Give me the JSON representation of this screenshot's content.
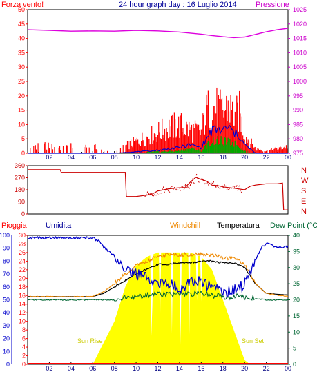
{
  "chart_data": [
    {
      "id": "wind",
      "type": "bar",
      "title": "24 hour graph day : 16 Luglio 2014",
      "left_label": "Forza vento!",
      "right_label": "Pressione",
      "left_ticks": [
        "0",
        "5",
        "10",
        "15",
        "20",
        "25",
        "30",
        "35",
        "40",
        "45",
        "50"
      ],
      "right_ticks": [
        "975",
        "980",
        "985",
        "990",
        "995",
        "1000",
        "1005",
        "1010",
        "1015",
        "1020",
        "1025"
      ],
      "x_ticks": [
        "02",
        "04",
        "06",
        "08",
        "10",
        "12",
        "14",
        "16",
        "18",
        "20",
        "22",
        "00"
      ],
      "ylim": [
        0,
        50
      ],
      "ylim_right": [
        975,
        1025
      ],
      "xlim": [
        0,
        24
      ],
      "colors": {
        "gust": "#ff0000",
        "speed": "#0000cc",
        "lull": "#00aa00",
        "pressure": "#dd00dd"
      },
      "pressure": {
        "name": "Pressione",
        "x": [
          0,
          2,
          4,
          6,
          8,
          10,
          12,
          14,
          16,
          17,
          18,
          19,
          20,
          21,
          22,
          23,
          24
        ],
        "y": [
          1018,
          1017.8,
          1017.5,
          1017.6,
          1017.5,
          1017.8,
          1017.6,
          1017.2,
          1016.5,
          1016,
          1015.6,
          1015.3,
          1015.5,
          1016.4,
          1017.3,
          1018,
          1018.5
        ]
      },
      "gust_envelope": {
        "x": [
          0,
          1,
          2,
          3,
          4,
          5,
          6,
          7,
          8,
          9,
          10,
          11,
          12,
          13,
          14,
          15,
          16,
          16.5,
          17,
          17.5,
          18,
          18.5,
          19,
          19.5,
          20,
          21,
          22,
          23,
          24
        ],
        "y": [
          2,
          4,
          3,
          2,
          3,
          2,
          3,
          1,
          0,
          3,
          5,
          7,
          9,
          11,
          12,
          10,
          9,
          18,
          20,
          19,
          17,
          21,
          16,
          18,
          8,
          2,
          1,
          2,
          3
        ]
      },
      "speed_envelope": {
        "x": [
          0,
          8,
          12,
          14,
          15,
          16,
          16.5,
          17,
          18,
          18.5,
          19,
          19.5,
          20,
          21,
          24
        ],
        "y": [
          0,
          0,
          1,
          2,
          3,
          2,
          5,
          8,
          8,
          9,
          7,
          6,
          3,
          0,
          0
        ]
      },
      "lull_envelope": {
        "x": [
          0,
          8,
          14,
          15,
          16,
          16.5,
          17,
          18,
          19,
          19.5,
          20,
          21,
          24
        ],
        "y": [
          0,
          0,
          1,
          2,
          1,
          3,
          5,
          5,
          4,
          3,
          1,
          0,
          0
        ]
      }
    },
    {
      "id": "direction",
      "type": "line",
      "left_ticks": [
        "0",
        "90",
        "180",
        "270",
        "360"
      ],
      "compass_labels": [
        "N",
        "W",
        "S",
        "E",
        "N"
      ],
      "ylim": [
        0,
        360
      ],
      "xlim": [
        0,
        24
      ],
      "color": "#cc0000",
      "series": [
        {
          "x": [
            0,
            3,
            3.1,
            9,
            9.1,
            10,
            11,
            11.5,
            12,
            13,
            14,
            14.5,
            15,
            15.5,
            16,
            16.5,
            17,
            17.5,
            18,
            19,
            20,
            20.5,
            21,
            22,
            23,
            23.5,
            23.6,
            24
          ],
          "y": [
            330,
            330,
            310,
            310,
            130,
            130,
            140,
            145,
            160,
            185,
            195,
            200,
            230,
            270,
            250,
            235,
            215,
            205,
            195,
            190,
            180,
            205,
            215,
            225,
            225,
            230,
            30,
            30
          ]
        }
      ]
    },
    {
      "id": "combo",
      "type": "line",
      "legend": {
        "pioggia": "Pioggia",
        "umidita": "Umidita",
        "windchill": "Windchill",
        "temperatura": "Temperatura",
        "dewpoint": "Dew Point (°C"
      },
      "humidity_ticks": [
        "0",
        "10",
        "20",
        "30",
        "40",
        "50",
        "60",
        "70",
        "80",
        "90",
        "100"
      ],
      "rain_ticks": [
        "0",
        "2",
        "4",
        "6",
        "8",
        "10",
        "12",
        "14",
        "16",
        "18",
        "20",
        "22",
        "24",
        "26",
        "28",
        "30"
      ],
      "temp_ticks": [
        "0",
        "5",
        "10",
        "15",
        "20",
        "25",
        "30",
        "35",
        "40"
      ],
      "x_ticks": [
        "02",
        "04",
        "06",
        "08",
        "10",
        "12",
        "14",
        "16",
        "18",
        "20",
        "22",
        "00"
      ],
      "annotations": {
        "sunrise": "Sun Rise",
        "sunset": "Sun Set"
      },
      "ylim_humidity": [
        0,
        100
      ],
      "ylim_rain": [
        0,
        30
      ],
      "ylim_temp": [
        0,
        40
      ],
      "xlim": [
        0,
        24
      ],
      "colors": {
        "humidity": "#0000cc",
        "windchill": "#ee8800",
        "temperature": "#000000",
        "dewpoint": "#006633",
        "solar": "#ffff00",
        "rain": "#ff0000"
      },
      "humidity": {
        "x": [
          0,
          2,
          4,
          6,
          6.5,
          7,
          8,
          9,
          10,
          11,
          12,
          13,
          14,
          15,
          16,
          17,
          18,
          19,
          20,
          21,
          21.5,
          22,
          23,
          24
        ],
        "y": [
          98,
          98,
          98,
          98,
          96,
          91,
          84,
          75,
          70,
          67,
          62,
          63,
          58,
          65,
          64,
          60,
          56,
          57,
          62,
          80,
          90,
          94,
          91,
          91
        ]
      },
      "windchill": {
        "x": [
          0,
          4,
          6,
          7,
          8,
          9,
          10,
          11,
          12,
          13,
          14,
          15,
          16,
          17,
          18,
          19,
          20,
          21,
          22,
          24
        ],
        "y": [
          21,
          21,
          21,
          22.5,
          25,
          28,
          30.5,
          32,
          33.5,
          34,
          34,
          34,
          34,
          34,
          33,
          33,
          31,
          25,
          22,
          21
        ]
      },
      "temperature": {
        "x": [
          0,
          4,
          6,
          7,
          8,
          9,
          10,
          11,
          12,
          13,
          14,
          15,
          16,
          17,
          18,
          19,
          20,
          21,
          22,
          24
        ],
        "y": [
          21,
          21,
          21,
          22,
          24,
          26,
          28,
          29.5,
          31,
          31,
          31.5,
          31.5,
          32,
          32,
          31.5,
          31.5,
          30,
          25,
          22,
          21.5
        ]
      },
      "dewpoint": {
        "x": [
          0,
          2,
          4,
          6,
          8,
          10,
          12,
          14,
          16,
          18,
          20,
          22,
          24
        ],
        "y": [
          20,
          20,
          20,
          20,
          20,
          21,
          22,
          21.5,
          22,
          21,
          21,
          20,
          20
        ]
      },
      "solar": {
        "x": [
          0,
          6,
          7,
          8,
          9,
          10,
          11,
          12,
          13,
          14,
          15,
          16,
          17,
          18,
          19,
          20,
          20.5,
          24
        ],
        "y": [
          0,
          0,
          5,
          10,
          18,
          23,
          25,
          26,
          26,
          26,
          26,
          25,
          22,
          15,
          8,
          1,
          0,
          0
        ]
      }
    }
  ]
}
